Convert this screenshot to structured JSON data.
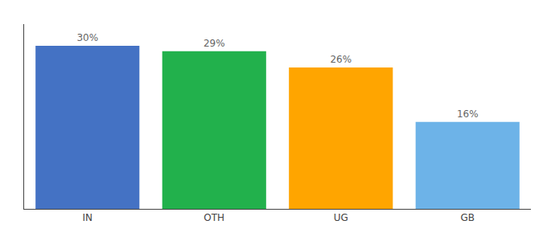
{
  "chart_data": {
    "type": "bar",
    "categories": [
      "IN",
      "OTH",
      "UG",
      "GB"
    ],
    "values": [
      30,
      29,
      26,
      16
    ],
    "value_labels": [
      "30%",
      "29%",
      "26%",
      "16%"
    ],
    "colors": [
      "#4472C4",
      "#22B14C",
      "#FFA500",
      "#6DB3E8"
    ],
    "ylim": [
      0,
      34
    ],
    "grid": false,
    "data_labels": true,
    "tick_labels": "x"
  }
}
